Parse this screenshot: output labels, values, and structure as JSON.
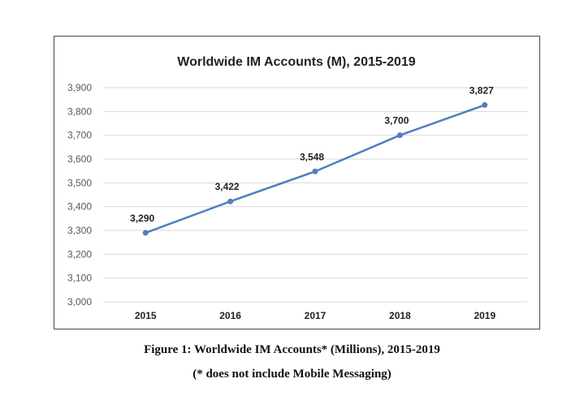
{
  "chart_data": {
    "type": "line",
    "title": "Worldwide IM Accounts (M), 2015-2019",
    "categories": [
      "2015",
      "2016",
      "2017",
      "2018",
      "2019"
    ],
    "series": [
      {
        "values": [
          3290,
          3422,
          3548,
          3700,
          3827
        ],
        "labels": [
          "3,290",
          "3,422",
          "3,548",
          "3,700",
          "3,827"
        ],
        "color": "#4f7fbf"
      }
    ],
    "ylim": [
      3000,
      3900
    ],
    "ytick_step": 100,
    "ytick_labels": [
      "3,000",
      "3,100",
      "3,200",
      "3,300",
      "3,400",
      "3,500",
      "3,600",
      "3,700",
      "3,800",
      "3,900"
    ],
    "grid": true,
    "legend": "none",
    "xlabel": "",
    "ylabel": ""
  },
  "caption": {
    "line1": "Figure 1: Worldwide IM Accounts* (Millions), 2015-2019",
    "line2": "(* does not include Mobile Messaging)"
  },
  "colors": {
    "gridline": "#d9d9d9",
    "frame": "#4a4a4a"
  }
}
